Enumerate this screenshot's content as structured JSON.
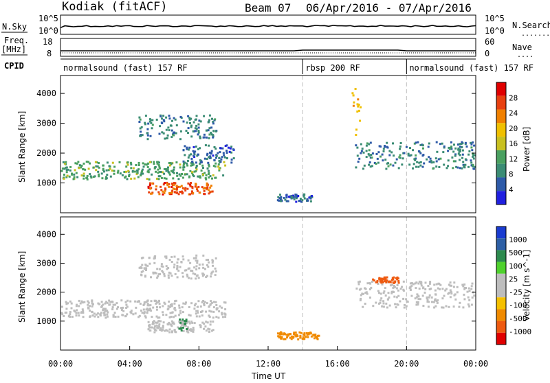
{
  "header": {
    "station": "Kodiak (fitACF)",
    "beam": "Beam 07",
    "date_range": "06/Apr/2016 - 07/Apr/2016"
  },
  "top_strip": {
    "nsky_label": "N.Sky",
    "nsky_ticks": [
      "10^5",
      "10^0"
    ],
    "nsearch_label": "N.Search",
    "nsearch_ticks": [
      "10^5",
      "10^0"
    ],
    "freq_label": "Freq.",
    "freq_unit": "[MHz]",
    "freq_ticks": [
      "18",
      "8"
    ],
    "nave_label": "Nave",
    "nave_ticks": [
      "60",
      "0"
    ],
    "cpid_label": "CPID"
  },
  "cpid_segments": [
    {
      "start_h": 0,
      "end_h": 14,
      "label": "normalsound (fast) 157 RF"
    },
    {
      "start_h": 14,
      "end_h": 20,
      "label": "rbsp 200 RF"
    },
    {
      "start_h": 20,
      "end_h": 24,
      "label": "normalsound (fast) 157 RF"
    }
  ],
  "colors": {
    "power_scale": [
      "#2020e0",
      "#2e5aa8",
      "#3b8c74",
      "#4aa060",
      "#c8c020",
      "#f0c000",
      "#f08000",
      "#e84010",
      "#e00000"
    ],
    "velocity_scale": [
      "#1a3cd0",
      "#2d5fa5",
      "#2c8a4e",
      "#4fd12d",
      "#bdbdbd",
      "#bdbdbd",
      "#f5c000",
      "#f08a00",
      "#ee5a10",
      "#e00000"
    ],
    "divider": "#c0c0c0"
  },
  "chart_data": [
    {
      "type": "heatmap",
      "panel": "power",
      "xlabel": "",
      "ylabel": "Slant Range [km]",
      "xlim_hours": [
        0,
        24
      ],
      "ylim_km": [
        0,
        4600
      ],
      "yticks": [
        "1000",
        "2000",
        "3000",
        "4000"
      ],
      "colorbar": {
        "label": "Power [dB]",
        "ticks": [
          "4",
          "8",
          "12",
          "16",
          "20",
          "24",
          "28"
        ],
        "range": [
          0,
          32
        ]
      },
      "echo_regions": [
        {
          "t_start": 0.0,
          "t_end": 9.5,
          "r_start": 1150,
          "r_end": 1750,
          "value": 12
        },
        {
          "t_start": 5.0,
          "t_end": 8.8,
          "r_start": 650,
          "r_end": 1050,
          "value": 26
        },
        {
          "t_start": 4.5,
          "t_end": 9.0,
          "r_start": 2500,
          "r_end": 3300,
          "value": 8
        },
        {
          "t_start": 7.0,
          "t_end": 10.0,
          "r_start": 1700,
          "r_end": 2300,
          "value": 6
        },
        {
          "t_start": 12.5,
          "t_end": 14.5,
          "r_start": 400,
          "r_end": 650,
          "value": 6
        },
        {
          "t_start": 17.0,
          "t_end": 24.0,
          "r_start": 1500,
          "r_end": 2400,
          "value": 8
        },
        {
          "t_start": 16.8,
          "t_end": 17.3,
          "r_start": 2400,
          "r_end": 4500,
          "value": 20
        }
      ]
    },
    {
      "type": "heatmap",
      "panel": "velocity",
      "xlabel": "Time UT",
      "ylabel": "Slant Range [km]",
      "xlim_hours": [
        0,
        24
      ],
      "ylim_km": [
        0,
        4600
      ],
      "yticks": [
        "1000",
        "2000",
        "3000",
        "4000"
      ],
      "xticks": [
        "00:00",
        "04:00",
        "08:00",
        "12:00",
        "16:00",
        "20:00",
        "00:00"
      ],
      "colorbar": {
        "label": "Velocity [m s^-1]",
        "ticks": [
          "1000",
          "500",
          "100",
          "25",
          "-25",
          "-100",
          "-500",
          "-1000"
        ]
      },
      "echo_regions": [
        {
          "t_start": 0.0,
          "t_end": 9.5,
          "r_start": 1150,
          "r_end": 1750,
          "value": 0
        },
        {
          "t_start": 5.0,
          "t_end": 8.8,
          "r_start": 650,
          "r_end": 1050,
          "value": 0
        },
        {
          "t_start": 6.8,
          "t_end": 7.3,
          "r_start": 700,
          "r_end": 1100,
          "value": 150
        },
        {
          "t_start": 4.5,
          "t_end": 9.0,
          "r_start": 2500,
          "r_end": 3300,
          "value": 0
        },
        {
          "t_start": 12.5,
          "t_end": 15.0,
          "r_start": 400,
          "r_end": 650,
          "value": -150
        },
        {
          "t_start": 17.0,
          "t_end": 24.0,
          "r_start": 1500,
          "r_end": 2400,
          "value": 0
        },
        {
          "t_start": 18.0,
          "t_end": 19.5,
          "r_start": 2350,
          "r_end": 2550,
          "value": -800
        }
      ]
    }
  ]
}
